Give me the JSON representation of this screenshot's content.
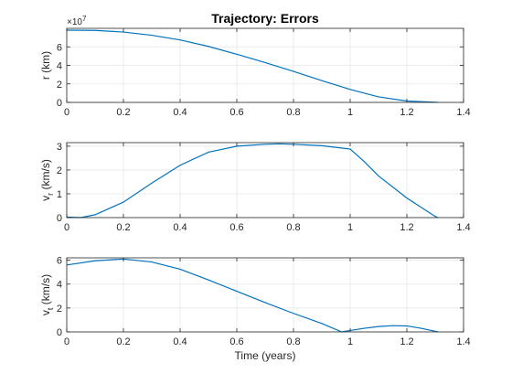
{
  "chart_data": [
    {
      "type": "line",
      "title": "Trajectory: Errors",
      "xlabel": "",
      "ylabel": "r (km)",
      "y_exponent": "×10",
      "y_exponent_power": "7",
      "xlim": [
        0,
        1.4
      ],
      "ylim": [
        0,
        8
      ],
      "xticks": [
        "0",
        "0.2",
        "0.4",
        "0.6",
        "0.8",
        "1",
        "1.2",
        "1.4"
      ],
      "yticks": [
        "0",
        "2",
        "4",
        "6"
      ],
      "ytick_values": [
        0,
        2,
        4,
        6
      ],
      "grid": true,
      "line_color": "#0072BD",
      "x": [
        0,
        0.1,
        0.2,
        0.3,
        0.4,
        0.5,
        0.6,
        0.7,
        0.8,
        0.9,
        1.0,
        1.1,
        1.2,
        1.3,
        1.31
      ],
      "values": [
        7.8,
        7.78,
        7.6,
        7.25,
        6.75,
        6.05,
        5.2,
        4.3,
        3.35,
        2.35,
        1.4,
        0.6,
        0.15,
        0.02,
        0.0
      ]
    },
    {
      "type": "line",
      "title": "",
      "xlabel": "",
      "ylabel_main": "v",
      "ylabel_sub": "r",
      "ylabel_unit": " (km/s)",
      "xlim": [
        0,
        1.4
      ],
      "ylim": [
        0,
        3.15
      ],
      "xticks": [
        "0",
        "0.2",
        "0.4",
        "0.6",
        "0.8",
        "1",
        "1.2",
        "1.4"
      ],
      "yticks": [
        "0",
        "1",
        "2",
        "3"
      ],
      "ytick_values": [
        0,
        1,
        2,
        3
      ],
      "grid": true,
      "line_color": "#0072BD",
      "x": [
        0,
        0.05,
        0.1,
        0.2,
        0.3,
        0.4,
        0.5,
        0.6,
        0.7,
        0.75,
        0.8,
        0.9,
        1.0,
        1.05,
        1.1,
        1.2,
        1.3,
        1.31
      ],
      "values": [
        0.02,
        0.0,
        0.12,
        0.65,
        1.45,
        2.2,
        2.75,
        3.0,
        3.08,
        3.1,
        3.08,
        3.02,
        2.88,
        2.35,
        1.75,
        0.82,
        0.05,
        0.0
      ]
    },
    {
      "type": "line",
      "title": "",
      "xlabel": "Time (years)",
      "ylabel_main": "v",
      "ylabel_sub": "t",
      "ylabel_unit": " (km/s)",
      "xlim": [
        0,
        1.4
      ],
      "ylim": [
        0,
        6.2
      ],
      "xticks": [
        "0",
        "0.2",
        "0.4",
        "0.6",
        "0.8",
        "1",
        "1.2",
        "1.4"
      ],
      "yticks": [
        "0",
        "2",
        "4",
        "6"
      ],
      "ytick_values": [
        0,
        2,
        4,
        6
      ],
      "grid": true,
      "line_color": "#0072BD",
      "x": [
        0,
        0.1,
        0.2,
        0.3,
        0.4,
        0.5,
        0.6,
        0.7,
        0.8,
        0.9,
        0.97,
        1.0,
        1.05,
        1.1,
        1.15,
        1.2,
        1.25,
        1.3,
        1.31
      ],
      "values": [
        5.6,
        5.95,
        6.1,
        5.85,
        5.25,
        4.35,
        3.4,
        2.45,
        1.55,
        0.7,
        0.0,
        0.12,
        0.3,
        0.45,
        0.52,
        0.5,
        0.3,
        0.05,
        0.0
      ]
    }
  ]
}
